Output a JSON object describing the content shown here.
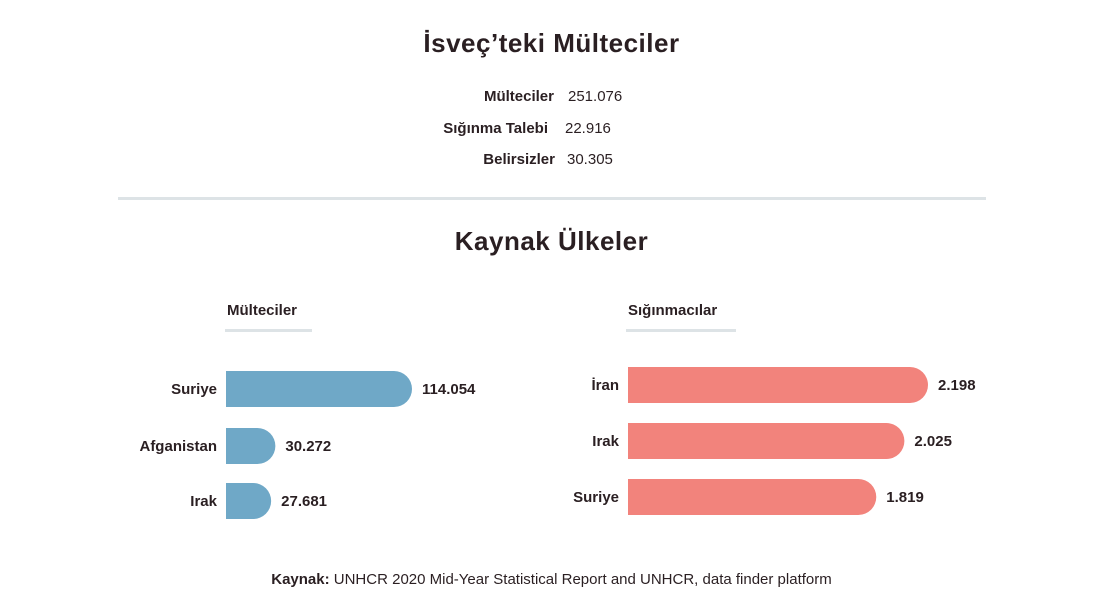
{
  "title": "İsveç’teki Mülteciler",
  "stats": [
    {
      "label": "Mülteciler",
      "value": "251.076"
    },
    {
      "label": "Sığınma Talebi",
      "value": "22.916"
    },
    {
      "label": "Belirsizler",
      "value": "30.305"
    }
  ],
  "section_title": "Kaynak Ülkeler",
  "source": {
    "label": "Kaynak:",
    "text": "UNHCR 2020 Mid-Year Statistical Report and UNHCR, data finder platform"
  },
  "colors": {
    "refugees": "#6fa8c7",
    "asylum": "#f2837c"
  },
  "chart_data": [
    {
      "type": "bar",
      "title": "Mülteciler",
      "categories": [
        "Suriye",
        "Afganistan",
        "Irak"
      ],
      "values": [
        114054,
        30272,
        27681
      ],
      "value_labels": [
        "114.054",
        "30.272",
        "27.681"
      ]
    },
    {
      "type": "bar",
      "title": "Sığınmacılar",
      "categories": [
        "İran",
        "Irak",
        "Suriye"
      ],
      "values": [
        2198,
        2025,
        1819
      ],
      "value_labels": [
        "2.198",
        "2.025",
        "1.819"
      ]
    }
  ]
}
